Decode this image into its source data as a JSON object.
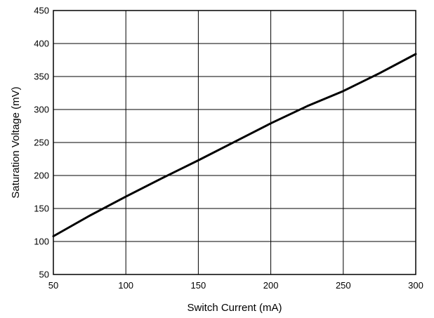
{
  "chart_data": {
    "type": "line",
    "title": "",
    "xlabel": "Switch Current (mA)",
    "ylabel": "Saturation Voltage (mV)",
    "xlim": [
      50,
      300
    ],
    "ylim": [
      50,
      450
    ],
    "xticks": [
      50,
      100,
      150,
      200,
      250,
      300
    ],
    "yticks": [
      50,
      100,
      150,
      200,
      250,
      300,
      350,
      400,
      450
    ],
    "grid": true,
    "series": [
      {
        "x": [
          50,
          75,
          100,
          125,
          150,
          175,
          200,
          225,
          250,
          275,
          300
        ],
        "y": [
          108,
          139,
          168,
          196,
          223,
          251,
          279,
          305,
          328,
          355,
          384
        ]
      }
    ]
  },
  "style": {
    "line_color": "#000000",
    "grid_color": "#000000",
    "background": "#ffffff"
  }
}
